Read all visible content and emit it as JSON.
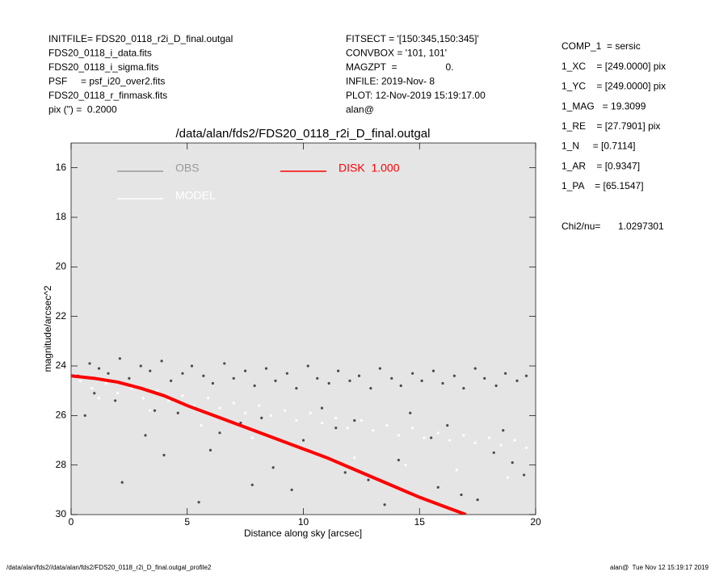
{
  "header": {
    "left": [
      "INITFILE= FDS20_0118_r2i_D_final.outgal",
      "FDS20_0118_i_data.fits",
      "FDS20_0118_i_sigma.fits",
      "PSF     = psf_i20_over2.fits",
      "FDS20_0118_r_finmask.fits",
      "pix (\") =  0.2000"
    ],
    "middle": [
      "FITSECT = '[150:345,150:345]'",
      "CONVBOX = '101, 101'",
      "MAGZPT  =                  0.",
      "INFILE: 2019-Nov- 8",
      "PLOT: 12-Nov-2019 15:19:17.00",
      "alan@"
    ],
    "right": [
      "COMP_1  = sersic",
      "1_XC    = [249.0000] pix",
      "1_YC    = [249.0000] pix",
      "1_MAG   = 19.3099",
      "1_RE    = [27.7901] pix",
      "1_N     = [0.7114]",
      "1_AR    = [0.9347]",
      "1_PA    = [65.1547]"
    ],
    "chi2_label": "Chi2/nu=",
    "chi2_value": "1.0297301"
  },
  "chart_data": {
    "type": "scatter",
    "title": "/data/alan/fds2/FDS20_0118_r2i_D_final.outgal",
    "x_label": "Distance along sky [arcsec]",
    "y_label": "magnitude/arcsec^2",
    "xlim": [
      0,
      20
    ],
    "ylim": [
      15,
      30
    ],
    "y_inverted": true,
    "xticks": [
      0,
      5,
      10,
      15,
      20
    ],
    "yticks": [
      16,
      18,
      20,
      22,
      24,
      26,
      28,
      30
    ],
    "background": "#e5e5e5",
    "series": [
      {
        "name": "OBS",
        "color": "#4a4a4a",
        "legend_color": "#999999",
        "mode": "points",
        "x": [
          0.3,
          0.8,
          1.2,
          1.6,
          2.1,
          2.5,
          3.0,
          3.4,
          3.9,
          4.3,
          4.8,
          5.2,
          5.7,
          6.1,
          6.6,
          7.0,
          7.5,
          7.9,
          8.4,
          8.8,
          9.3,
          9.7,
          10.2,
          10.6,
          11.1,
          11.5,
          12.0,
          12.4,
          12.9,
          13.3,
          13.8,
          14.2,
          14.7,
          15.1,
          15.6,
          16.0,
          16.5,
          16.9,
          17.4,
          17.8,
          18.3,
          18.7,
          19.2,
          19.6,
          0.6,
          1.9,
          3.2,
          4.6,
          6.0,
          7.3,
          8.7,
          10.0,
          11.4,
          12.8,
          14.1,
          15.5,
          16.8,
          18.2,
          19.5,
          2.2,
          4.0,
          5.5,
          7.8,
          9.5,
          11.8,
          13.5,
          15.8,
          17.5,
          19.0,
          1.0,
          3.6,
          6.4,
          8.2,
          10.8,
          12.2,
          14.6,
          16.2,
          18.6
        ],
        "values": [
          24.4,
          23.9,
          24.1,
          24.3,
          23.7,
          24.5,
          24.0,
          24.2,
          23.8,
          24.6,
          24.3,
          24.0,
          24.4,
          24.7,
          23.9,
          24.5,
          24.2,
          24.8,
          24.1,
          24.6,
          24.3,
          24.9,
          24.0,
          24.5,
          24.7,
          24.2,
          24.6,
          24.4,
          24.9,
          24.1,
          24.5,
          24.8,
          24.3,
          24.6,
          24.2,
          24.7,
          24.4,
          24.9,
          24.1,
          24.5,
          24.8,
          24.3,
          24.6,
          24.4,
          26.0,
          25.4,
          26.8,
          25.9,
          27.4,
          26.3,
          28.1,
          27.0,
          26.5,
          28.6,
          27.8,
          26.9,
          29.2,
          27.5,
          28.4,
          28.7,
          27.6,
          29.5,
          28.8,
          29.0,
          28.3,
          29.6,
          28.9,
          29.4,
          27.9,
          25.1,
          25.8,
          26.7,
          26.1,
          25.7,
          26.2,
          25.9,
          26.4,
          26.6
        ]
      },
      {
        "name": "MODEL",
        "color": "#ffffff",
        "legend_color": "#ffffff",
        "mode": "points",
        "x": [
          0.4,
          0.9,
          1.5,
          2.0,
          2.6,
          3.1,
          3.7,
          4.2,
          4.8,
          5.3,
          5.9,
          6.4,
          7.0,
          7.5,
          8.1,
          8.6,
          9.2,
          9.7,
          10.3,
          10.8,
          11.4,
          11.9,
          12.5,
          13.0,
          13.6,
          14.1,
          14.7,
          15.2,
          15.8,
          16.3,
          16.9,
          17.4,
          18.0,
          18.5,
          19.1,
          19.6,
          1.2,
          3.4,
          5.6,
          7.8,
          10.0,
          12.2,
          14.4,
          16.6,
          18.8
        ],
        "values": [
          24.6,
          24.9,
          24.7,
          25.1,
          24.9,
          25.3,
          25.0,
          25.4,
          25.2,
          25.6,
          25.3,
          25.7,
          25.5,
          25.9,
          25.6,
          26.0,
          25.8,
          26.2,
          25.9,
          26.3,
          26.1,
          26.5,
          26.2,
          26.6,
          26.4,
          26.8,
          26.5,
          26.9,
          26.7,
          27.0,
          26.8,
          27.1,
          26.9,
          27.2,
          27.0,
          27.3,
          25.3,
          25.8,
          26.4,
          26.9,
          27.3,
          27.7,
          28.0,
          28.2,
          28.5
        ]
      },
      {
        "name": "DISK  1.000",
        "color": "#ff0000",
        "legend_color": "#ff0000",
        "mode": "line",
        "x": [
          0,
          1,
          2,
          3,
          4,
          5,
          6,
          7,
          8,
          9,
          10,
          11,
          12,
          13,
          14,
          15,
          16,
          17
        ],
        "values": [
          24.4,
          24.5,
          24.65,
          24.9,
          25.2,
          25.6,
          25.95,
          26.3,
          26.65,
          27.0,
          27.35,
          27.7,
          28.1,
          28.5,
          28.9,
          29.3,
          29.65,
          30.0
        ]
      }
    ]
  },
  "footer": {
    "left": "/data/alan/fds2//data/alan/fds2/FDS20_0118_r2i_D_final.outgal_profile2",
    "right": "alan@  Tue Nov 12 15:19:17 2019"
  }
}
